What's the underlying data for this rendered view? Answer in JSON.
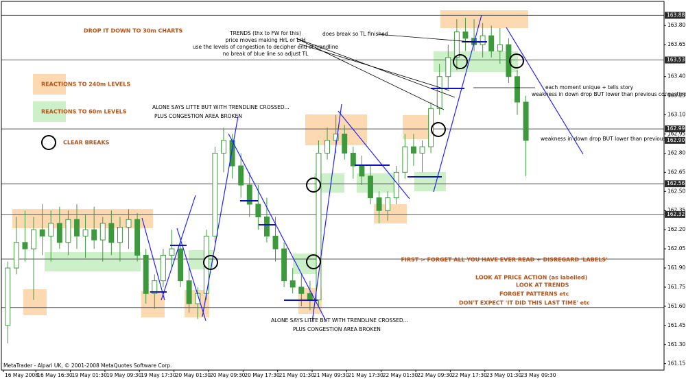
{
  "chart_data": {
    "type": "candlestick",
    "footer": "MetaTrader - Alpari UK, © 2001-2008 MetaQuotes Software Corp.",
    "annotations": [
      "DROP IT DOWN TO 30m CHARTS",
      "TRENDS (thx to FW for this)",
      "price moves making HrL or LrH",
      "use the levels of congestion to decipher end of trendline",
      "no break of blue line so adjust TL",
      "does break so TL finished",
      "REACTIONS TO 240m LEVELS",
      "REACTIONS TO 60m LEVELS",
      "CLEAR BREAKS",
      "ALONE SAYS LITTE BUT WITH TRENDLINE CROSSED...",
      "PLUS CONGESTION AREA BROKEN",
      "ALONE SAYS LITTE BUT WITH TRENDLINE CROSSED...",
      "PLUS CONGESTION AREA BROKEN",
      "each moment unique + tells story",
      "weakness in down drop BUT lower than previous congestion",
      "weakness in down drop BUT lower than previous level",
      "FIRST > FORGET ALL YOU HAVE EVER READ + DISREGARD 'LABELS'",
      "LOOK AT PRICE ACTION (as labelled)",
      "LOOK AT TRENDS",
      "FORGET PATTERNS etc",
      "DON'T EXPECT 'IT DID THIS LAST TIME' etc"
    ],
    "x": [
      0,
      1,
      2,
      3,
      4,
      5,
      6,
      7,
      8,
      9,
      10,
      11,
      12,
      13,
      14,
      15,
      16,
      17,
      18,
      19,
      20,
      21,
      22,
      23,
      24,
      25,
      26,
      27,
      28,
      29,
      30,
      31,
      32,
      33,
      34,
      35,
      36,
      37,
      38,
      39,
      40,
      41,
      42,
      43,
      44,
      45,
      46,
      47,
      48,
      49,
      50,
      51,
      52,
      53,
      54,
      55,
      56,
      57,
      58,
      59,
      60
    ],
    "open": [
      161.45,
      161.9,
      162.1,
      162.05,
      162.2,
      162.15,
      162.25,
      162.1,
      162.28,
      162.15,
      162.2,
      162.12,
      162.25,
      162.1,
      162.22,
      162.28,
      162.0,
      161.7,
      161.8,
      162.0,
      162.05,
      161.8,
      161.62,
      161.7,
      162.15,
      162.8,
      162.9,
      162.7,
      162.55,
      162.4,
      162.3,
      162.15,
      162.05,
      161.8,
      161.75,
      161.7,
      161.65,
      162.8,
      162.9,
      162.95,
      162.8,
      162.7,
      162.62,
      162.45,
      162.35,
      162.45,
      162.65,
      162.85,
      162.8,
      162.85,
      163.15,
      163.4,
      163.55,
      163.75,
      163.7,
      163.65,
      163.72,
      163.6,
      163.65,
      163.4,
      163.2
    ],
    "high": [
      161.95,
      162.3,
      162.35,
      162.3,
      162.4,
      162.35,
      162.38,
      162.35,
      162.4,
      162.32,
      162.38,
      162.3,
      162.35,
      162.3,
      162.36,
      162.33,
      162.05,
      161.85,
      162.05,
      162.2,
      162.1,
      161.9,
      161.75,
      162.2,
      162.85,
      163.0,
      162.95,
      162.8,
      162.65,
      162.55,
      162.45,
      162.3,
      162.1,
      161.9,
      161.85,
      161.8,
      162.9,
      163.0,
      163.1,
      163.02,
      162.85,
      162.78,
      162.7,
      162.5,
      162.5,
      162.7,
      162.95,
      162.95,
      162.9,
      163.2,
      163.5,
      163.65,
      163.85,
      163.86,
      163.85,
      163.82,
      163.8,
      163.78,
      163.7,
      163.45,
      163.25
    ],
    "low": [
      161.31,
      161.85,
      161.95,
      161.65,
      162.0,
      161.95,
      162.05,
      162.0,
      162.05,
      161.98,
      162.05,
      161.95,
      162.0,
      161.95,
      162.05,
      161.95,
      161.62,
      161.58,
      161.75,
      161.9,
      161.75,
      161.55,
      161.5,
      161.65,
      162.1,
      162.65,
      162.6,
      162.45,
      162.3,
      162.2,
      162.1,
      161.95,
      161.75,
      161.7,
      161.6,
      161.57,
      161.6,
      162.75,
      162.8,
      162.75,
      162.6,
      162.55,
      162.4,
      162.25,
      162.27,
      162.4,
      162.6,
      162.7,
      162.65,
      162.8,
      163.1,
      163.3,
      163.45,
      163.6,
      163.6,
      163.55,
      163.55,
      163.5,
      163.35,
      163.1,
      162.62
    ],
    "close": [
      161.9,
      162.1,
      162.05,
      162.2,
      162.15,
      162.25,
      162.1,
      162.28,
      162.15,
      162.2,
      162.12,
      162.25,
      162.1,
      162.22,
      162.28,
      162.0,
      161.7,
      161.8,
      162.0,
      162.05,
      161.8,
      161.62,
      161.7,
      162.15,
      162.8,
      162.9,
      162.7,
      162.55,
      162.4,
      162.3,
      162.15,
      162.05,
      161.8,
      161.75,
      161.7,
      161.65,
      162.8,
      162.9,
      162.95,
      162.8,
      162.7,
      162.62,
      162.45,
      162.35,
      162.45,
      162.65,
      162.85,
      162.8,
      162.85,
      163.15,
      163.4,
      163.55,
      163.75,
      163.7,
      163.65,
      163.72,
      163.6,
      163.65,
      163.4,
      163.2,
      162.9
    ],
    "up_color": "#ffffff",
    "down_color": "#3c9a3c",
    "wick_color": "#3c9a3c",
    "xlim": [
      -0.5,
      76
    ],
    "xticks": [
      {
        "value": -0.5,
        "label": "16 May 2008"
      },
      {
        "value": 3.25,
        "label": "16 May 16:30"
      },
      {
        "value": 7.25,
        "label": "19 May 01:30"
      },
      {
        "value": 11.25,
        "label": "19 May 09:30"
      },
      {
        "value": 15.25,
        "label": "19 May 17:30"
      },
      {
        "value": 19.25,
        "label": "20 May 01:30"
      },
      {
        "value": 23.25,
        "label": "20 May 09:30"
      },
      {
        "value": 27.25,
        "label": "20 May 17:30"
      },
      {
        "value": 31.25,
        "label": "21 May 01:30"
      },
      {
        "value": 35.25,
        "label": "21 May 09:30"
      },
      {
        "value": 39.25,
        "label": "21 May 17:30"
      },
      {
        "value": 43.25,
        "label": "22 May 01:30"
      },
      {
        "value": 47.25,
        "label": "22 May 09:30"
      },
      {
        "value": 51.25,
        "label": "22 May 17:30"
      },
      {
        "value": 55.25,
        "label": "23 May 01:30"
      },
      {
        "value": 59.25,
        "label": "23 May 09:30"
      }
    ],
    "ylim": [
      161.1,
      164.0
    ],
    "yticks": [
      {
        "value": 163.8,
        "label": "163.80"
      },
      163.65,
      {
        "value": 163.4,
        "label": "163.40"
      },
      163.25,
      {
        "value": 163.1,
        "label": "163.10"
      },
      162.95,
      {
        "value": 162.8,
        "label": "162.80"
      },
      162.65,
      {
        "value": 162.5,
        "label": "162.50"
      },
      162.35,
      {
        "value": 162.2,
        "label": "162.20"
      },
      162.05,
      {
        "value": 161.9,
        "label": "161.90"
      },
      161.75,
      {
        "value": 161.6,
        "label": "161.60"
      },
      161.45,
      {
        "value": 161.3,
        "label": "161.30"
      },
      161.15
    ],
    "levels": [
      163.88,
      163.53,
      162.99,
      {
        "value": 162.9,
        "label": "162.90"
      },
      162.56,
      162.32
    ],
    "hlines": [
      163.88,
      163.53,
      162.99,
      162.56,
      162.32,
      161.97,
      161.59
    ]
  }
}
